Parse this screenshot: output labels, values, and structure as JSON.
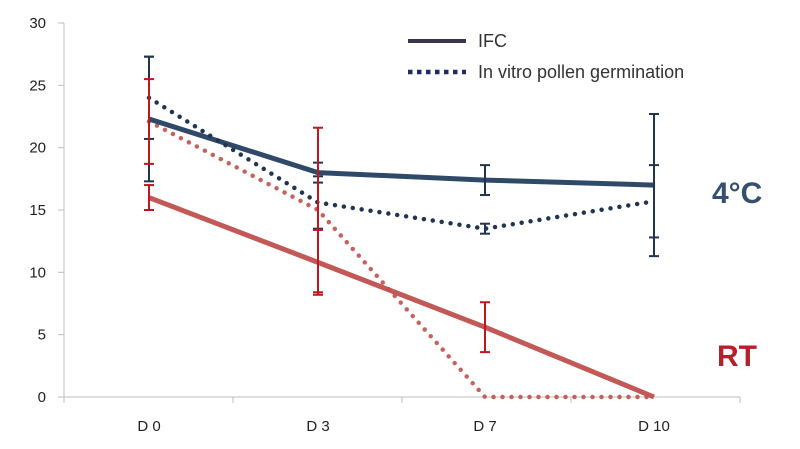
{
  "chart_data": {
    "type": "line",
    "categories": [
      "D 0",
      "D 3",
      "D 7",
      "D 10"
    ],
    "ylim": [
      0,
      30
    ],
    "yticks": [
      0,
      5,
      10,
      15,
      20,
      25,
      30
    ],
    "title": "",
    "xlabel": "",
    "ylabel": "",
    "legend": [
      {
        "label": "IFC",
        "style": "solid"
      },
      {
        "label": "In vitro pollen germination",
        "style": "dotted"
      }
    ],
    "legend_position": "top-right",
    "annotations": [
      {
        "text": "4°C",
        "color": "#34506e"
      },
      {
        "text": "RT",
        "color": "#b3222a"
      }
    ],
    "series": [
      {
        "name": "IFC 4°C",
        "style": "solid",
        "color": "#2f4a68",
        "values": [
          22.3,
          18.0,
          17.4,
          17.0
        ],
        "errors": [
          5.0,
          0.8,
          1.2,
          5.7
        ],
        "error_color": "#1f3552"
      },
      {
        "name": "In vitro pollen germination 4°C",
        "style": "dotted",
        "color": "#1f3552",
        "values": [
          24.0,
          15.6,
          13.5,
          15.7
        ],
        "errors": [
          3.3,
          2.1,
          0.4,
          2.9
        ],
        "error_color": "#1f3552"
      },
      {
        "name": "IFC RT",
        "style": "solid",
        "color": "#c0504d",
        "values": [
          16.0,
          10.8,
          5.6,
          0.0
        ],
        "errors": [
          1.0,
          2.6,
          2.0,
          0.0
        ],
        "error_color": "#c0161d"
      },
      {
        "name": "In vitro pollen germination RT",
        "style": "dotted",
        "color": "#c0504d",
        "values": [
          22.1,
          15.0,
          0.0,
          0.0
        ],
        "errors": [
          3.4,
          6.6,
          0.0,
          0.0
        ],
        "error_color": "#c0161d"
      }
    ]
  }
}
